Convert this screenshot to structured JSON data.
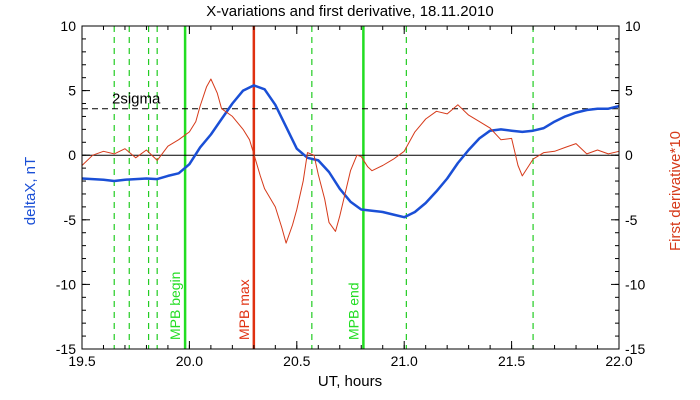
{
  "chart_data": {
    "type": "line",
    "title": "X-variations and first derivative, 18.11.2010",
    "xlabel": "UT, hours",
    "ylabel_left": "deltaX, nT",
    "ylabel_right": "First derivative*10",
    "xlim": [
      19.5,
      22.0
    ],
    "ylim_left": [
      -15,
      10
    ],
    "ylim_right": [
      -15,
      10
    ],
    "x_ticks": [
      "19.5",
      "20.0",
      "20.5",
      "21.0",
      "21.5",
      "22.0"
    ],
    "y_ticks_left": [
      "10",
      "5",
      "0",
      "-5",
      "-10",
      "-15"
    ],
    "y_ticks_right": [
      "10",
      "5",
      "0",
      "-5",
      "-10",
      "-15"
    ],
    "threshold": {
      "label": "2sigma",
      "value": 3.6
    },
    "zero_line": 0,
    "series": [
      {
        "name": "deltaX",
        "color": "#1a4fd6",
        "axis": "left",
        "x": [
          19.5,
          19.6,
          19.65,
          19.7,
          19.8,
          19.85,
          19.9,
          19.95,
          20.0,
          20.05,
          20.1,
          20.15,
          20.2,
          20.25,
          20.3,
          20.35,
          20.4,
          20.45,
          20.5,
          20.55,
          20.6,
          20.65,
          20.7,
          20.75,
          20.8,
          20.85,
          20.9,
          20.95,
          21.0,
          21.05,
          21.1,
          21.15,
          21.2,
          21.25,
          21.3,
          21.35,
          21.4,
          21.45,
          21.5,
          21.55,
          21.6,
          21.65,
          21.7,
          21.75,
          21.8,
          21.85,
          21.9,
          21.95,
          22.0
        ],
        "y": [
          -1.8,
          -1.9,
          -2.0,
          -1.9,
          -1.8,
          -1.85,
          -1.6,
          -1.4,
          -0.7,
          0.6,
          1.6,
          2.8,
          4.0,
          5.0,
          5.4,
          5.1,
          3.9,
          2.2,
          0.5,
          -0.2,
          -0.4,
          -1.3,
          -2.6,
          -3.6,
          -4.2,
          -4.3,
          -4.4,
          -4.6,
          -4.8,
          -4.4,
          -3.7,
          -2.8,
          -1.8,
          -0.6,
          0.4,
          1.3,
          1.9,
          2.0,
          1.9,
          1.8,
          1.9,
          2.1,
          2.6,
          3.0,
          3.3,
          3.5,
          3.6,
          3.6,
          3.8
        ]
      },
      {
        "name": "First derivative*10",
        "color": "#d63a1a",
        "axis": "right",
        "x": [
          19.5,
          19.55,
          19.6,
          19.65,
          19.7,
          19.75,
          19.8,
          19.85,
          19.9,
          19.95,
          20.0,
          20.03,
          20.05,
          20.08,
          20.1,
          20.13,
          20.15,
          20.2,
          20.25,
          20.28,
          20.3,
          20.33,
          20.35,
          20.4,
          20.43,
          20.45,
          20.48,
          20.5,
          20.53,
          20.55,
          20.58,
          20.6,
          20.63,
          20.65,
          20.68,
          20.7,
          20.72,
          20.75,
          20.78,
          20.8,
          20.83,
          20.85,
          20.9,
          20.95,
          21.0,
          21.05,
          21.08,
          21.1,
          21.15,
          21.2,
          21.25,
          21.3,
          21.35,
          21.4,
          21.45,
          21.5,
          21.53,
          21.55,
          21.6,
          21.65,
          21.7,
          21.75,
          21.8,
          21.85,
          21.9,
          21.95,
          22.0
        ],
        "y": [
          -0.8,
          0.0,
          0.3,
          0.1,
          0.5,
          -0.2,
          0.4,
          -0.4,
          0.7,
          1.2,
          1.8,
          2.6,
          3.8,
          5.3,
          5.9,
          4.8,
          3.6,
          3.0,
          2.0,
          1.2,
          0.1,
          -1.6,
          -2.6,
          -4.0,
          -5.6,
          -6.8,
          -5.4,
          -4.2,
          -2.0,
          0.2,
          0.0,
          -1.5,
          -3.4,
          -5.2,
          -5.9,
          -4.7,
          -3.3,
          -1.2,
          0.0,
          -0.1,
          -0.9,
          -1.2,
          -0.8,
          -0.3,
          0.3,
          1.8,
          2.4,
          2.8,
          3.4,
          3.2,
          3.9,
          3.1,
          2.6,
          2.1,
          1.2,
          1.3,
          -0.8,
          -1.6,
          -0.3,
          0.2,
          0.3,
          0.6,
          0.9,
          0.1,
          0.4,
          0.1,
          0.3
        ]
      }
    ],
    "vlines": [
      {
        "x": 19.65,
        "style": "dashed",
        "color": "#22cc22"
      },
      {
        "x": 19.72,
        "style": "dashed",
        "color": "#22cc22"
      },
      {
        "x": 19.81,
        "style": "dashed",
        "color": "#22cc22"
      },
      {
        "x": 19.85,
        "style": "dashed",
        "color": "#22cc22"
      },
      {
        "x": 19.98,
        "style": "solid",
        "color": "#22dd22",
        "label": "MPB begin"
      },
      {
        "x": 20.3,
        "style": "solid",
        "color": "#e03010",
        "label": "MPB max"
      },
      {
        "x": 20.57,
        "style": "dashed",
        "color": "#22cc22"
      },
      {
        "x": 20.81,
        "style": "solid",
        "color": "#22dd22",
        "label": "MPB end"
      },
      {
        "x": 21.01,
        "style": "dashed",
        "color": "#22cc22"
      },
      {
        "x": 21.6,
        "style": "dashed",
        "color": "#22cc22"
      }
    ],
    "grid": false,
    "legend": "none"
  }
}
